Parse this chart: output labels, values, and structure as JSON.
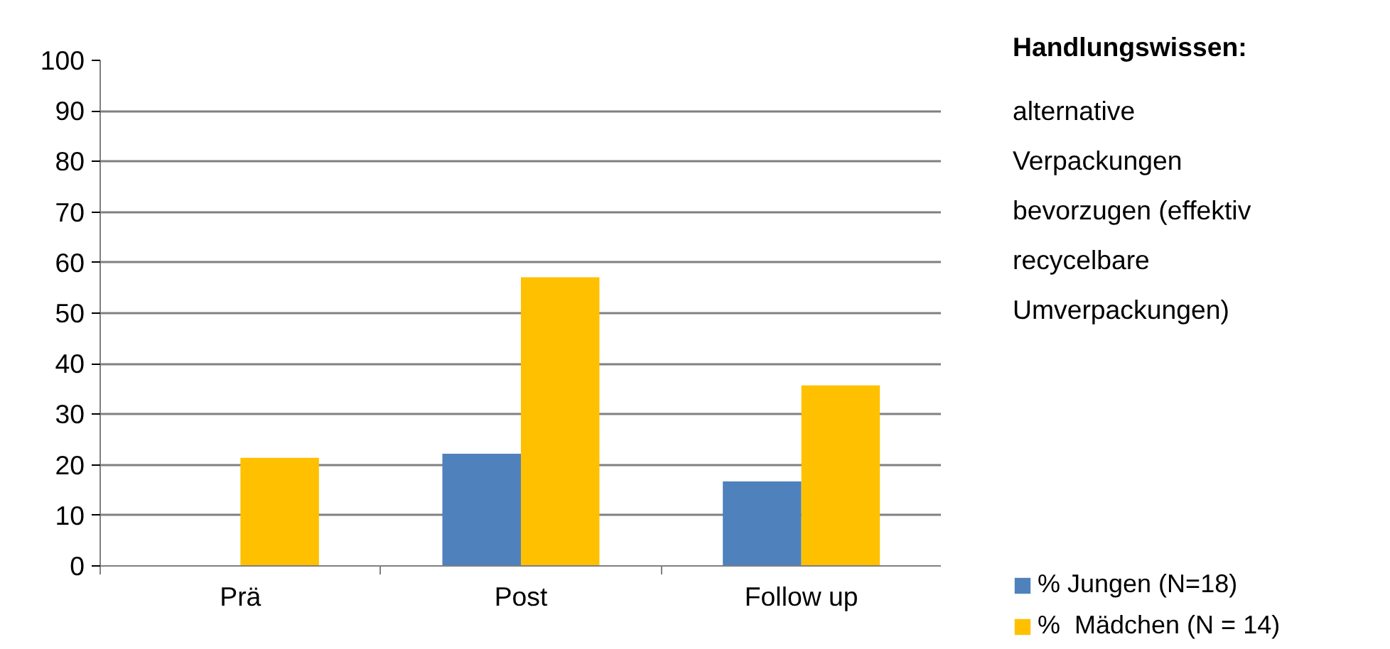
{
  "chart_data": {
    "type": "bar",
    "title": "Handlungswissen:",
    "subtitle": "alternative Verpackungen bevorzugen (effektiv recycelbare Umverpackungen)",
    "categories": [
      "Prä",
      "Post",
      "Follow up"
    ],
    "series": [
      {
        "name": "% Jungen (N=18)",
        "color": "#4f81bd",
        "values": [
          0,
          22.2,
          16.7
        ]
      },
      {
        "name": "%  Mädchen (N = 14)",
        "color": "#ffc000",
        "values": [
          21.4,
          57.1,
          35.7
        ]
      }
    ],
    "ylim": [
      0,
      100
    ],
    "yticks": [
      0,
      10,
      20,
      30,
      40,
      50,
      60,
      70,
      80,
      90,
      100
    ],
    "grid": "y",
    "legend": "bottom right"
  }
}
